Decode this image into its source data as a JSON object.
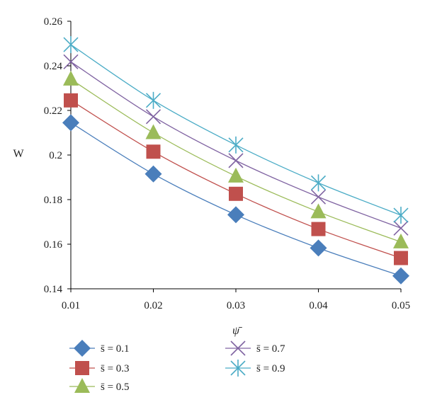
{
  "chart_data": {
    "type": "line",
    "xlabel": "ψ̄",
    "ylabel": "W",
    "x": [
      0.01,
      0.02,
      0.03,
      0.04,
      0.05
    ],
    "x_ticks": [
      "0.01",
      "0.02",
      "0.03",
      "0.04",
      "0.05"
    ],
    "y_ticks": [
      "0.14",
      "0.16",
      "0.18",
      "0.2",
      "0.22",
      "0.24",
      "0.26"
    ],
    "xlim": [
      0.01,
      0.05
    ],
    "ylim": [
      0.14,
      0.26
    ],
    "grid": false,
    "legend_position": "bottom",
    "series": [
      {
        "name": "s̄ = 0.1",
        "color": "#4a7ebb",
        "marker": "diamond",
        "values": [
          0.2145,
          0.1915,
          0.1732,
          0.1583,
          0.1458
        ]
      },
      {
        "name": "s̄ = 0.3",
        "color": "#c0504d",
        "marker": "square",
        "values": [
          0.2245,
          0.2015,
          0.1826,
          0.1668,
          0.1538
        ]
      },
      {
        "name": "s̄ = 0.5",
        "color": "#9bbb59",
        "marker": "triangle",
        "values": [
          0.234,
          0.21,
          0.1905,
          0.1745,
          0.161
        ]
      },
      {
        "name": "s̄ = 0.7",
        "color": "#8064a2",
        "marker": "x",
        "values": [
          0.2418,
          0.2172,
          0.1975,
          0.1812,
          0.1672
        ]
      },
      {
        "name": "s̄ = 0.9",
        "color": "#4bacc6",
        "marker": "star",
        "values": [
          0.2495,
          0.2245,
          0.2045,
          0.1875,
          0.173
        ]
      }
    ]
  }
}
